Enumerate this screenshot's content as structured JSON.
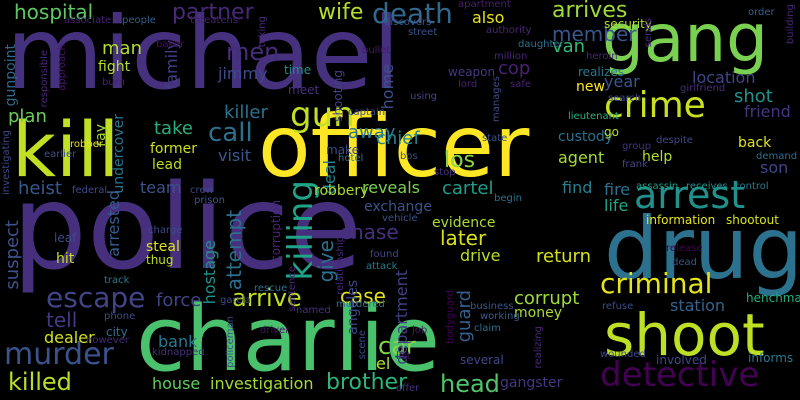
{
  "words": [
    {
      "text": "police",
      "color": "#46307e"
    },
    {
      "text": "michael",
      "color": "#46317e"
    },
    {
      "text": "officer",
      "color": "#fde725"
    },
    {
      "text": "charlie",
      "color": "#4ac16d"
    },
    {
      "text": "drug",
      "color": "#2c728e"
    },
    {
      "text": "kill",
      "color": "#c2df23"
    },
    {
      "text": "gang",
      "color": "#7ad151"
    },
    {
      "text": "shoot",
      "color": "#bddf26"
    },
    {
      "text": "crime",
      "color": "#c8e020"
    },
    {
      "text": "arrest",
      "color": "#21918c"
    },
    {
      "text": "criminal",
      "color": "#e5e419"
    },
    {
      "text": "detective",
      "color": "#440154"
    },
    {
      "text": "gun",
      "color": "#c0df25"
    },
    {
      "text": "killing",
      "color": "#20a386"
    },
    {
      "text": "murder",
      "color": "#3b528b"
    },
    {
      "text": "escape",
      "color": "#414487"
    },
    {
      "text": "death",
      "color": "#31688e"
    },
    {
      "text": "hospital",
      "color": "#5ec962"
    },
    {
      "text": "partner",
      "color": "#482878"
    },
    {
      "text": "wife",
      "color": "#b5de2b"
    },
    {
      "text": "arrives",
      "color": "#9fda3a"
    },
    {
      "text": "member",
      "color": "#39558c"
    },
    {
      "text": "killed",
      "color": "#b8de29"
    },
    {
      "text": "brother",
      "color": "#2fb47c"
    },
    {
      "text": "head",
      "color": "#50c46a"
    },
    {
      "text": "call",
      "color": "#2d708e"
    },
    {
      "text": "men",
      "color": "#472c7a"
    },
    {
      "text": "take",
      "color": "#29af7f"
    },
    {
      "text": "arrive",
      "color": "#c2df23"
    },
    {
      "text": "case",
      "color": "#e2e418"
    },
    {
      "text": "car",
      "color": "#86d549"
    },
    {
      "text": "tell",
      "color": "#443a83"
    },
    {
      "text": "attempt",
      "color": "#2e6f8e"
    },
    {
      "text": "later",
      "color": "#d8e219"
    },
    {
      "text": "chase",
      "color": "#46307e"
    },
    {
      "text": "return",
      "color": "#d5e21a"
    },
    {
      "text": "shot",
      "color": "#20928c"
    },
    {
      "text": "van",
      "color": "#37b878"
    },
    {
      "text": "agent",
      "color": "#a5db36"
    },
    {
      "text": "los",
      "color": "#8bd646"
    },
    {
      "text": "away",
      "color": "#2a768e"
    },
    {
      "text": "year",
      "color": "#39568c"
    },
    {
      "text": "fire",
      "color": "#2d718e"
    },
    {
      "text": "life",
      "color": "#22a785"
    },
    {
      "text": "cartel",
      "color": "#1f9e89"
    },
    {
      "text": "find",
      "color": "#27808e"
    },
    {
      "text": "heist",
      "color": "#38588c"
    },
    {
      "text": "team",
      "color": "#3b528b"
    },
    {
      "text": "give",
      "color": "#2c728e"
    },
    {
      "text": "suspect",
      "color": "#3b528b"
    },
    {
      "text": "corrupt",
      "color": "#a0da39"
    },
    {
      "text": "house",
      "color": "#62cb5f"
    },
    {
      "text": "investigation",
      "color": "#a2da37"
    },
    {
      "text": "force",
      "color": "#414487"
    },
    {
      "text": "bank",
      "color": "#2a788e"
    },
    {
      "text": "station",
      "color": "#33638d"
    },
    {
      "text": "visit",
      "color": "#38588c"
    },
    {
      "text": "chief",
      "color": "#25848e"
    },
    {
      "text": "man",
      "color": "#b2dd2d"
    },
    {
      "text": "plan",
      "color": "#6ccd5a"
    },
    {
      "text": "killer",
      "color": "#2c728e"
    },
    {
      "text": "jimmy",
      "color": "#3e4a89"
    },
    {
      "text": "location",
      "color": "#3f4788"
    },
    {
      "text": "friend",
      "color": "#453581"
    },
    {
      "text": "new",
      "color": "#fde725"
    },
    {
      "text": "reveals",
      "color": "#7ad151"
    },
    {
      "text": "deal",
      "color": "#25848e"
    },
    {
      "text": "hostage",
      "color": "#21918c"
    },
    {
      "text": "gangster",
      "color": "#453781"
    },
    {
      "text": "dealer",
      "color": "#d2e21b"
    },
    {
      "text": "also",
      "color": "#e7e419"
    },
    {
      "text": "son",
      "color": "#404688"
    },
    {
      "text": "back",
      "color": "#dde318"
    },
    {
      "text": "fight",
      "color": "#b5de2b"
    },
    {
      "text": "family",
      "color": "#433e85"
    },
    {
      "text": "former",
      "color": "#d0e11c"
    },
    {
      "text": "arrested",
      "color": "#365c8d"
    },
    {
      "text": "department",
      "color": "#424086"
    },
    {
      "text": "drive",
      "color": "#b8de29"
    },
    {
      "text": "evidence",
      "color": "#aadc32"
    },
    {
      "text": "help",
      "color": "#b5de2b"
    },
    {
      "text": "lead",
      "color": "#b8de29"
    },
    {
      "text": "guard",
      "color": "#355f8d"
    },
    {
      "text": "el",
      "color": "#b2dd2d"
    },
    {
      "text": "cop",
      "color": "#482173"
    },
    {
      "text": "custody",
      "color": "#2c728e"
    },
    {
      "text": "home",
      "color": "#3b528b"
    },
    {
      "text": "angeles",
      "color": "#3e4989"
    },
    {
      "text": "exchange",
      "color": "#3b528b"
    },
    {
      "text": "money",
      "color": "#a8db34"
    },
    {
      "text": "undercover",
      "color": "#2c728e"
    },
    {
      "text": "robbery",
      "color": "#a8db34"
    },
    {
      "text": "ray",
      "color": "#a5db36"
    },
    {
      "text": "security",
      "color": "#b2dd2d"
    },
    {
      "text": "weapon",
      "color": "#453781"
    },
    {
      "text": "gunpoint",
      "color": "#31688e"
    },
    {
      "text": "henchman",
      "color": "#26ad81"
    },
    {
      "text": "shootout",
      "color": "#d5e21a"
    },
    {
      "text": "information",
      "color": "#e5e419"
    },
    {
      "text": "go",
      "color": "#b5de2b"
    },
    {
      "text": "informs",
      "color": "#2a788e"
    },
    {
      "text": "involved",
      "color": "#3e4989"
    },
    {
      "text": "several",
      "color": "#3f4788"
    },
    {
      "text": "hit",
      "color": "#c2df23"
    },
    {
      "text": "leaf",
      "color": "#3e4a89"
    },
    {
      "text": "steal",
      "color": "#dde318"
    },
    {
      "text": "thug",
      "color": "#bddf26"
    },
    {
      "text": "city",
      "color": "#2e6e8e"
    },
    {
      "text": "time",
      "color": "#228c8d"
    },
    {
      "text": "meet",
      "color": "#46307e"
    },
    {
      "text": "make",
      "color": "#3e4989"
    },
    {
      "text": "shooting",
      "color": "#424086"
    },
    {
      "text": "corruption",
      "color": "#482475"
    },
    {
      "text": "robber",
      "color": "#e5e419"
    },
    {
      "text": "order",
      "color": "#355f8d"
    },
    {
      "text": "people",
      "color": "#355f8d"
    },
    {
      "text": "associate",
      "color": "#482173"
    },
    {
      "text": "threatens",
      "color": "#481f70"
    },
    {
      "text": "taking",
      "color": "#472d7b"
    },
    {
      "text": "discovers",
      "color": "#39568c"
    },
    {
      "text": "apartment",
      "color": "#481f70"
    },
    {
      "text": "street",
      "color": "#3b528b"
    },
    {
      "text": "authority",
      "color": "#482878"
    },
    {
      "text": "daughter",
      "color": "#2c728e"
    },
    {
      "text": "million",
      "color": "#482475"
    },
    {
      "text": "realizes",
      "color": "#2a788e"
    },
    {
      "text": "heroin",
      "color": "#482677"
    },
    {
      "text": "sends",
      "color": "#472c7a"
    },
    {
      "text": "girlfriend",
      "color": "#472c7a"
    },
    {
      "text": "search",
      "color": "#3e4a89"
    },
    {
      "text": "lieutenant",
      "color": "#29af7f"
    },
    {
      "text": "despite",
      "color": "#3e4989"
    },
    {
      "text": "group",
      "color": "#46327e"
    },
    {
      "text": "frank",
      "color": "#404688"
    },
    {
      "text": "demand",
      "color": "#2d708e"
    },
    {
      "text": "receives",
      "color": "#21918c"
    },
    {
      "text": "control",
      "color": "#29798e"
    },
    {
      "text": "assassin",
      "color": "#1f9e89"
    },
    {
      "text": "baker",
      "color": "#471063"
    },
    {
      "text": "approach",
      "color": "#481a6c"
    },
    {
      "text": "responsible",
      "color": "#482878"
    },
    {
      "text": "burn",
      "color": "#482173"
    },
    {
      "text": "earlier",
      "color": "#3b528b"
    },
    {
      "text": "captain",
      "color": "#3e4a89"
    },
    {
      "text": "hotel",
      "color": "#2c728e"
    },
    {
      "text": "bos",
      "color": "#3e4989"
    },
    {
      "text": "stop",
      "color": "#46327e"
    },
    {
      "text": "using",
      "color": "#404688"
    },
    {
      "text": "lord",
      "color": "#482173"
    },
    {
      "text": "manages",
      "color": "#3e4989"
    },
    {
      "text": "bullet",
      "color": "#481b6d"
    },
    {
      "text": "safe",
      "color": "#482475"
    },
    {
      "text": "state",
      "color": "#3b528b"
    },
    {
      "text": "federal",
      "color": "#3e4a89"
    },
    {
      "text": "crew",
      "color": "#3f4788"
    },
    {
      "text": "prison",
      "color": "#39568c"
    },
    {
      "text": "charge",
      "color": "#3e4989"
    },
    {
      "text": "begin",
      "color": "#2c728e"
    },
    {
      "text": "vehicle",
      "color": "#3b528b"
    },
    {
      "text": "relationship",
      "color": "#482878"
    },
    {
      "text": "attack",
      "color": "#29798e"
    },
    {
      "text": "found",
      "color": "#404688"
    },
    {
      "text": "release",
      "color": "#440154"
    },
    {
      "text": "dead",
      "color": "#3b528b"
    },
    {
      "text": "track",
      "color": "#2a788e"
    },
    {
      "text": "garcia",
      "color": "#3e4989"
    },
    {
      "text": "rescue",
      "color": "#2e6e8e"
    },
    {
      "text": "named",
      "color": "#46327e"
    },
    {
      "text": "murdered",
      "color": "#2c728e"
    },
    {
      "text": "business",
      "color": "#39568c"
    },
    {
      "text": "claim",
      "color": "#2c728e"
    },
    {
      "text": "refuse",
      "color": "#3e4a89"
    },
    {
      "text": "phone",
      "color": "#3e4989"
    },
    {
      "text": "however",
      "color": "#482878"
    },
    {
      "text": "kidnapped",
      "color": "#46327e"
    },
    {
      "text": "policeman",
      "color": "#3b528b"
    },
    {
      "text": "driver",
      "color": "#471365"
    },
    {
      "text": "scene",
      "color": "#3e4a89"
    },
    {
      "text": "job",
      "color": "#481b6d"
    },
    {
      "text": "bodyguard",
      "color": "#440154"
    },
    {
      "text": "working",
      "color": "#355f8d"
    },
    {
      "text": "realizing",
      "color": "#482878"
    },
    {
      "text": "wounded",
      "color": "#3e4a89"
    },
    {
      "text": "list",
      "color": "#471365"
    },
    {
      "text": "offer",
      "color": "#46327e"
    },
    {
      "text": "building",
      "color": "#482878"
    },
    {
      "text": "sentence",
      "color": "#482677"
    },
    {
      "text": "investigating",
      "color": "#3e4989"
    }
  ]
}
